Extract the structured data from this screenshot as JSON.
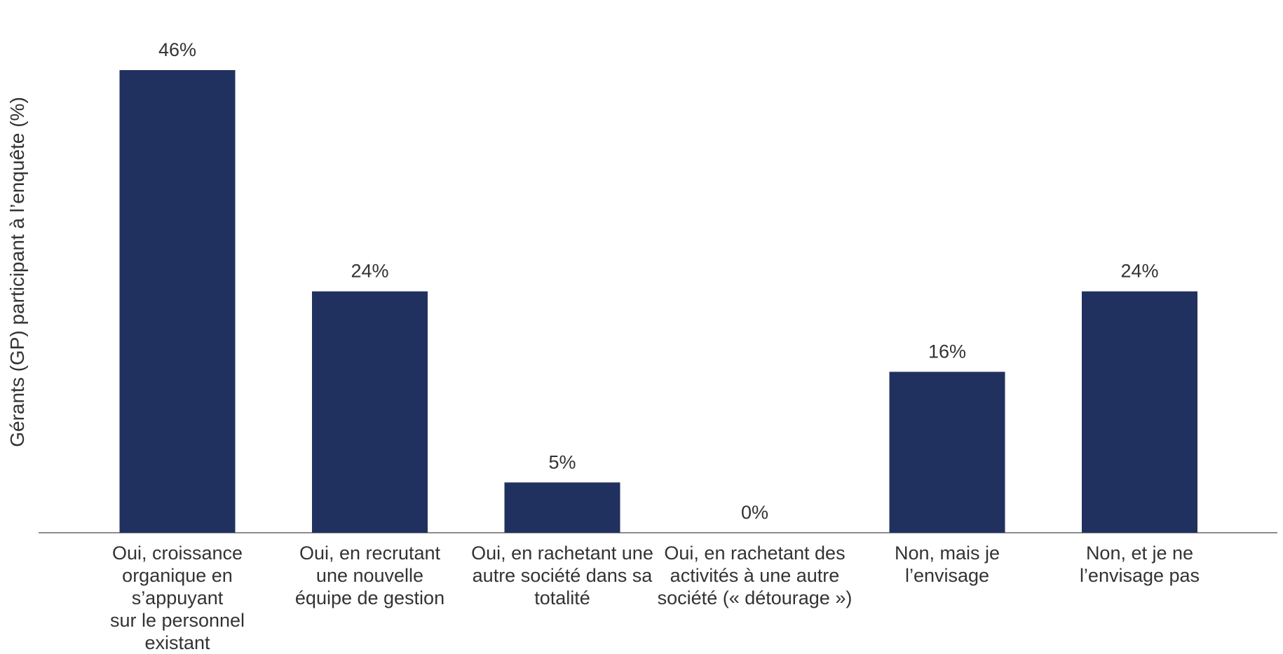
{
  "chart_data": {
    "type": "bar",
    "categories": [
      "Oui, croissance\norganique en s’appuyant\nsur le personnel existant",
      "Oui, en recrutant\nune nouvelle\néquipe de gestion",
      "Oui, en rachetant une\nautre société dans sa\ntotalité",
      "Oui, en rachetant des\nactivités à une autre\nsociété (« détourage »)",
      "Non, mais je\nl’envisage",
      "Non, et je ne\nl’envisage pas"
    ],
    "values": [
      46,
      24,
      5,
      0,
      16,
      24
    ],
    "value_labels": [
      "46%",
      "24%",
      "5%",
      "0%",
      "16%",
      "24%"
    ],
    "title": "",
    "xlabel": "",
    "ylabel": "Gérants (GP) participant à l’enquête (%)",
    "ylim": [
      0,
      46
    ],
    "grid": false,
    "bar_color": "#21315f",
    "axis_color": "#666666"
  }
}
